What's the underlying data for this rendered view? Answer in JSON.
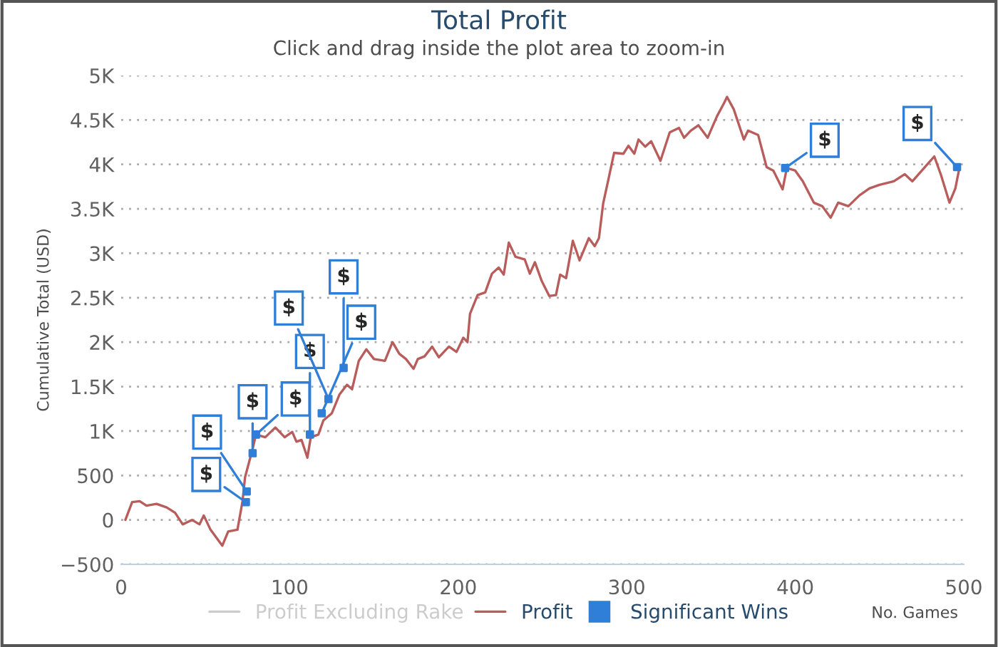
{
  "chart_data": {
    "type": "line",
    "title": "Total Profit",
    "subtitle": "Click and drag inside the plot area to zoom-in",
    "xlabel": "No. Games",
    "ylabel": "Cumulative Total (USD)",
    "xlim": [
      0,
      500
    ],
    "xticks": [
      0,
      100,
      200,
      300,
      400,
      500
    ],
    "ylim": [
      -500,
      5000
    ],
    "yticks": [
      {
        "value": -500,
        "label": "−500"
      },
      0,
      500,
      {
        "value": 1000,
        "label": "1K"
      },
      {
        "value": 1500,
        "label": "1.5K"
      },
      {
        "value": 2000,
        "label": "2K"
      },
      {
        "value": 2500,
        "label": "2.5K"
      },
      {
        "value": 3000,
        "label": "3K"
      },
      {
        "value": 3500,
        "label": "3.5K"
      },
      {
        "value": 4000,
        "label": "4K"
      },
      {
        "value": 4500,
        "label": "4.5K"
      },
      {
        "value": 5000,
        "label": "5K"
      }
    ],
    "grid": "y",
    "legend": "bottom",
    "series": [
      {
        "name": "Profit Excluding Rake",
        "color": "#cccccc"
      },
      {
        "name": "Profit",
        "color": "#b85c5c",
        "x": [
          2.5,
          6.5,
          11,
          15,
          21,
          27,
          32,
          36.5,
          42,
          46.5,
          49,
          53,
          60,
          63.5,
          69,
          72,
          73.5,
          78,
          80,
          85.5,
          91.5,
          97,
          101.5,
          104,
          107,
          110.5,
          112.5,
          117,
          120,
          125,
          129.5,
          134,
          137,
          141,
          145.5,
          150,
          156.5,
          161,
          165,
          169,
          173.5,
          176,
          180,
          184.5,
          188.5,
          194.5,
          199,
          203,
          205.5,
          207,
          211.5,
          216,
          220,
          224,
          227,
          230,
          234,
          239.5,
          242.5,
          245.5,
          249.5,
          254,
          258,
          260.5,
          264,
          268,
          272,
          277.5,
          281,
          283.5,
          286,
          289,
          292.5,
          298,
          301,
          304.5,
          307,
          311,
          314.5,
          320,
          325.5,
          331,
          334,
          338,
          342.5,
          348,
          353.5,
          358,
          359.5,
          363.5,
          369.5,
          372,
          378,
          383,
          387,
          392.5,
          395,
          400,
          404.5,
          411,
          416,
          421,
          425.5,
          431.5,
          438,
          444,
          450,
          458.5,
          465,
          469.5,
          476.5,
          482.5,
          486.5,
          491.5,
          495,
          497.5
        ],
        "values": [
          0,
          200,
          210,
          160,
          180,
          140,
          80,
          -50,
          0,
          -50,
          50,
          -110,
          -290,
          -130,
          -110,
          210,
          480,
          800,
          960,
          930,
          1040,
          930,
          990,
          880,
          900,
          700,
          930,
          960,
          1120,
          1200,
          1410,
          1520,
          1470,
          1790,
          1920,
          1810,
          1790,
          2000,
          1870,
          1810,
          1700,
          1810,
          1840,
          1950,
          1830,
          1950,
          1890,
          2050,
          2000,
          2320,
          2530,
          2560,
          2770,
          2840,
          2760,
          3120,
          2960,
          2930,
          2770,
          2900,
          2690,
          2520,
          2530,
          2760,
          2720,
          3140,
          2920,
          3170,
          3080,
          3170,
          3560,
          3820,
          4130,
          4120,
          4210,
          4120,
          4280,
          4200,
          4260,
          4040,
          4360,
          4410,
          4300,
          4380,
          4440,
          4300,
          4540,
          4700,
          4760,
          4620,
          4280,
          4380,
          4330,
          3970,
          3930,
          3720,
          3960,
          3930,
          3810,
          3570,
          3530,
          3400,
          3570,
          3530,
          3650,
          3730,
          3770,
          3810,
          3890,
          3810,
          3960,
          4090,
          3880,
          3570,
          3730,
          3970
        ]
      },
      {
        "name": "Significant Wins",
        "type": "scatter",
        "marker": "square",
        "color": "#2f7ed8",
        "x": [
          74,
          74.5,
          78,
          80,
          112,
          119,
          123,
          132,
          394,
          496
        ],
        "values": [
          200,
          320,
          750,
          960,
          960,
          1200,
          1360,
          1710,
          3960,
          3970
        ],
        "value_labels": [
          "$",
          "$",
          "$",
          "$",
          "$",
          "$",
          "$",
          "$",
          "$",
          "$"
        ]
      }
    ]
  }
}
